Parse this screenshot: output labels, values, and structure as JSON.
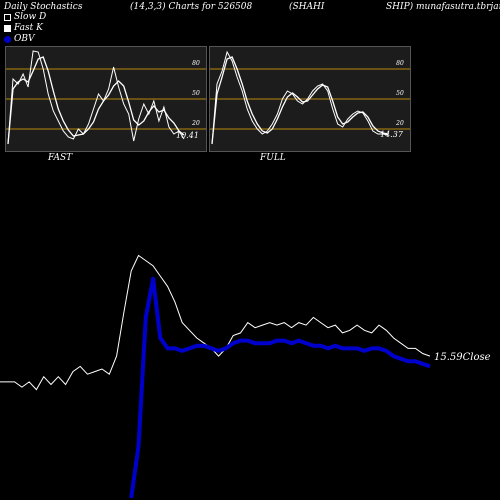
{
  "header": {
    "title": "Daily Stochastics",
    "params": "(14,3,3) Charts for 526508",
    "symbol": "(SHAHI",
    "right_text": "SHIP) munafasutra.tbrjars"
  },
  "legend": {
    "slow_d": "Slow  D",
    "fast_k": "Fast K",
    "obv": "OBV"
  },
  "colors": {
    "background": "#000000",
    "panel_bg": "#1c1c1c",
    "level_line": "#b8860b",
    "stoch_line": "#ffffff",
    "obv_line": "#0000cc",
    "close_line": "#ffffff"
  },
  "chart_data": [
    {
      "type": "line",
      "title": "FAST",
      "ylim": [
        0,
        100
      ],
      "levels": [
        20,
        50,
        80
      ],
      "tick_labels": [
        "80",
        "50",
        "20"
      ],
      "last_label": "10.41",
      "series": [
        {
          "name": "Fast K",
          "values": [
            5,
            70,
            65,
            75,
            62,
            98,
            97,
            80,
            55,
            38,
            28,
            18,
            12,
            10,
            20,
            15,
            25,
            40,
            55,
            48,
            60,
            82,
            62,
            45,
            35,
            8,
            30,
            45,
            35,
            48,
            28,
            42,
            22,
            15,
            18,
            10
          ]
        },
        {
          "name": "Slow D",
          "values": [
            5,
            60,
            67,
            70,
            67,
            78,
            90,
            92,
            78,
            58,
            40,
            28,
            19,
            13,
            14,
            15,
            20,
            27,
            40,
            48,
            54,
            63,
            68,
            63,
            47,
            29,
            24,
            28,
            37,
            43,
            37,
            39,
            31,
            26,
            18,
            14
          ]
        }
      ]
    },
    {
      "type": "line",
      "title": "FULL",
      "ylim": [
        0,
        100
      ],
      "levels": [
        20,
        50,
        80
      ],
      "tick_labels": [
        "80",
        "50",
        "20"
      ],
      "last_label": "14.37",
      "series": [
        {
          "name": "Fast K",
          "values": [
            5,
            65,
            78,
            97,
            88,
            72,
            58,
            40,
            28,
            20,
            15,
            18,
            25,
            35,
            50,
            58,
            55,
            48,
            45,
            50,
            58,
            63,
            65,
            58,
            40,
            25,
            22,
            30,
            35,
            38,
            36,
            28,
            18,
            15,
            15,
            14
          ]
        },
        {
          "name": "Slow D",
          "values": [
            5,
            55,
            72,
            90,
            92,
            80,
            65,
            48,
            35,
            25,
            18,
            16,
            20,
            30,
            42,
            52,
            56,
            52,
            47,
            48,
            54,
            60,
            64,
            62,
            48,
            32,
            25,
            27,
            32,
            36,
            37,
            32,
            23,
            18,
            16,
            15
          ]
        }
      ]
    },
    {
      "type": "line",
      "title": "",
      "ylim": [
        0,
        100
      ],
      "last_label": "15.59Close",
      "series": [
        {
          "name": "Close",
          "values": [
            45,
            45,
            45,
            43,
            45,
            42,
            47,
            44,
            47,
            44,
            49,
            51,
            48,
            49,
            50,
            48,
            55,
            72,
            88,
            94,
            92,
            90,
            86,
            82,
            76,
            68,
            65,
            62,
            60,
            58,
            55,
            58,
            63,
            64,
            68,
            66,
            67,
            68,
            67,
            68,
            66,
            68,
            67,
            70,
            68,
            66,
            67,
            64,
            65,
            67,
            65,
            64,
            67,
            65,
            62,
            60,
            58,
            58,
            56,
            55
          ]
        },
        {
          "name": "OBV",
          "values": [
            null,
            null,
            null,
            null,
            null,
            null,
            null,
            null,
            null,
            null,
            null,
            null,
            null,
            null,
            null,
            null,
            null,
            null,
            0,
            20,
            70,
            85,
            62,
            58,
            58,
            57,
            58,
            59,
            59,
            58,
            57,
            58,
            60,
            61,
            61,
            60,
            60,
            60,
            61,
            61,
            60,
            61,
            60,
            59,
            59,
            58,
            59,
            58,
            58,
            58,
            57,
            58,
            58,
            57,
            55,
            54,
            53,
            53,
            52,
            51
          ]
        }
      ]
    }
  ]
}
